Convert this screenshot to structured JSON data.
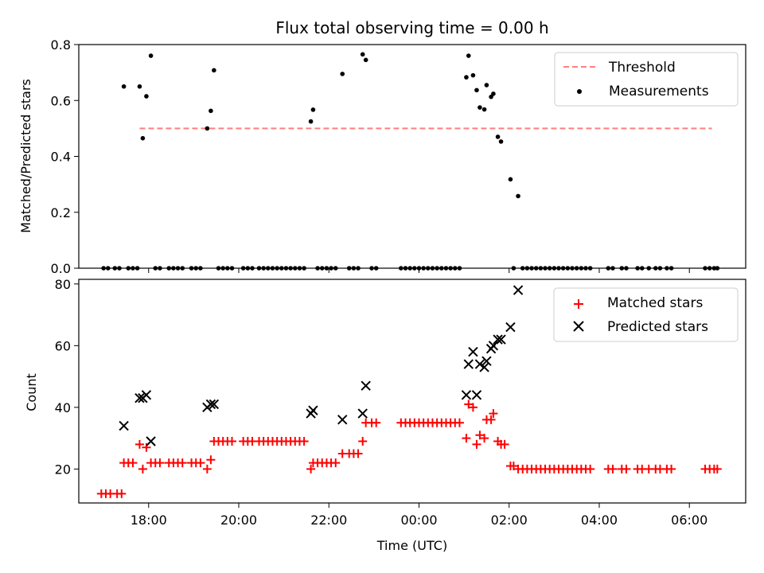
{
  "chart_data": [
    {
      "type": "scatter",
      "title": "Flux total observing time = 0.00 h",
      "xlabel": "",
      "ylabel": "Matched/Predicted stars",
      "xlim": [
        16.45,
        31.25
      ],
      "ylim": [
        0.0,
        0.8
      ],
      "yticks": [
        "0.0",
        "0.2",
        "0.4",
        "0.6",
        "0.8"
      ],
      "xticks_hours": [
        18,
        20,
        22,
        24,
        26,
        28,
        30
      ],
      "grid": false,
      "legend_position": "top-right",
      "threshold": {
        "name": "Threshold",
        "y": 0.5,
        "x_start": 17.8,
        "x_end": 30.5,
        "color": "#ff7f7f",
        "style": "dashed"
      },
      "series": [
        {
          "name": "Measurements",
          "color": "#000000",
          "marker": "dot",
          "points": [
            [
              17.45,
              0.65
            ],
            [
              17.8,
              0.65
            ],
            [
              17.87,
              0.465
            ],
            [
              17.95,
              0.615
            ],
            [
              18.05,
              0.76
            ],
            [
              19.3,
              0.5
            ],
            [
              19.38,
              0.563
            ],
            [
              19.45,
              0.708
            ],
            [
              21.6,
              0.525
            ],
            [
              21.65,
              0.567
            ],
            [
              22.3,
              0.695
            ],
            [
              22.75,
              0.765
            ],
            [
              22.82,
              0.745
            ],
            [
              25.05,
              0.683
            ],
            [
              25.1,
              0.76
            ],
            [
              25.2,
              0.69
            ],
            [
              25.28,
              0.637
            ],
            [
              25.35,
              0.575
            ],
            [
              25.45,
              0.568
            ],
            [
              25.5,
              0.655
            ],
            [
              25.6,
              0.613
            ],
            [
              25.65,
              0.624
            ],
            [
              25.75,
              0.47
            ],
            [
              25.82,
              0.453
            ],
            [
              26.03,
              0.318
            ],
            [
              26.2,
              0.258
            ],
            [
              17.0,
              0.0
            ],
            [
              17.1,
              0.0
            ],
            [
              17.25,
              0.0
            ],
            [
              17.35,
              0.0
            ],
            [
              17.55,
              0.0
            ],
            [
              17.65,
              0.0
            ],
            [
              17.75,
              0.0
            ],
            [
              18.15,
              0.0
            ],
            [
              18.25,
              0.0
            ],
            [
              18.45,
              0.0
            ],
            [
              18.55,
              0.0
            ],
            [
              18.65,
              0.0
            ],
            [
              18.75,
              0.0
            ],
            [
              18.95,
              0.0
            ],
            [
              19.05,
              0.0
            ],
            [
              19.15,
              0.0
            ],
            [
              19.55,
              0.0
            ],
            [
              19.65,
              0.0
            ],
            [
              19.75,
              0.0
            ],
            [
              19.85,
              0.0
            ],
            [
              20.1,
              0.0
            ],
            [
              20.2,
              0.0
            ],
            [
              20.3,
              0.0
            ],
            [
              20.45,
              0.0
            ],
            [
              20.55,
              0.0
            ],
            [
              20.65,
              0.0
            ],
            [
              20.75,
              0.0
            ],
            [
              20.85,
              0.0
            ],
            [
              20.95,
              0.0
            ],
            [
              21.05,
              0.0
            ],
            [
              21.15,
              0.0
            ],
            [
              21.25,
              0.0
            ],
            [
              21.35,
              0.0
            ],
            [
              21.45,
              0.0
            ],
            [
              21.75,
              0.0
            ],
            [
              21.85,
              0.0
            ],
            [
              21.95,
              0.0
            ],
            [
              22.05,
              0.0
            ],
            [
              22.15,
              0.0
            ],
            [
              22.45,
              0.0
            ],
            [
              22.55,
              0.0
            ],
            [
              22.65,
              0.0
            ],
            [
              22.95,
              0.0
            ],
            [
              23.05,
              0.0
            ],
            [
              23.6,
              0.0
            ],
            [
              23.7,
              0.0
            ],
            [
              23.8,
              0.0
            ],
            [
              23.9,
              0.0
            ],
            [
              24.0,
              0.0
            ],
            [
              24.1,
              0.0
            ],
            [
              24.2,
              0.0
            ],
            [
              24.3,
              0.0
            ],
            [
              24.4,
              0.0
            ],
            [
              24.5,
              0.0
            ],
            [
              24.6,
              0.0
            ],
            [
              24.7,
              0.0
            ],
            [
              24.8,
              0.0
            ],
            [
              24.9,
              0.0
            ],
            [
              26.1,
              0.0
            ],
            [
              26.3,
              0.0
            ],
            [
              26.4,
              0.0
            ],
            [
              26.5,
              0.0
            ],
            [
              26.6,
              0.0
            ],
            [
              26.7,
              0.0
            ],
            [
              26.8,
              0.0
            ],
            [
              26.9,
              0.0
            ],
            [
              27.0,
              0.0
            ],
            [
              27.1,
              0.0
            ],
            [
              27.2,
              0.0
            ],
            [
              27.3,
              0.0
            ],
            [
              27.4,
              0.0
            ],
            [
              27.5,
              0.0
            ],
            [
              27.6,
              0.0
            ],
            [
              27.7,
              0.0
            ],
            [
              27.8,
              0.0
            ],
            [
              28.2,
              0.0
            ],
            [
              28.3,
              0.0
            ],
            [
              28.5,
              0.0
            ],
            [
              28.6,
              0.0
            ],
            [
              28.85,
              0.0
            ],
            [
              28.95,
              0.0
            ],
            [
              29.1,
              0.0
            ],
            [
              29.25,
              0.0
            ],
            [
              29.35,
              0.0
            ],
            [
              29.5,
              0.0
            ],
            [
              29.6,
              0.0
            ],
            [
              30.35,
              0.0
            ],
            [
              30.45,
              0.0
            ],
            [
              30.55,
              0.0
            ],
            [
              30.62,
              0.0
            ]
          ]
        }
      ]
    },
    {
      "type": "scatter",
      "title": "",
      "xlabel": "Time (UTC)",
      "ylabel": "Count",
      "xlim": [
        16.45,
        31.25
      ],
      "ylim": [
        9,
        81.5
      ],
      "yticks": [
        "20",
        "40",
        "60",
        "80"
      ],
      "xticks": [
        "18:00",
        "20:00",
        "22:00",
        "00:00",
        "02:00",
        "04:00",
        "06:00"
      ],
      "xticks_hours": [
        18,
        20,
        22,
        24,
        26,
        28,
        30
      ],
      "grid": false,
      "legend_position": "top-right",
      "series": [
        {
          "name": "Matched stars",
          "color": "#ff0000",
          "marker": "plus",
          "points": [
            [
              16.95,
              12
            ],
            [
              17.05,
              12
            ],
            [
              17.15,
              12
            ],
            [
              17.3,
              12
            ],
            [
              17.4,
              12
            ],
            [
              17.45,
              22
            ],
            [
              17.55,
              22
            ],
            [
              17.65,
              22
            ],
            [
              17.8,
              28
            ],
            [
              17.87,
              20
            ],
            [
              17.95,
              27
            ],
            [
              18.05,
              22
            ],
            [
              18.15,
              22
            ],
            [
              18.25,
              22
            ],
            [
              18.45,
              22
            ],
            [
              18.55,
              22
            ],
            [
              18.65,
              22
            ],
            [
              18.75,
              22
            ],
            [
              18.95,
              22
            ],
            [
              19.05,
              22
            ],
            [
              19.15,
              22
            ],
            [
              19.3,
              20
            ],
            [
              19.38,
              23
            ],
            [
              19.45,
              29
            ],
            [
              19.55,
              29
            ],
            [
              19.65,
              29
            ],
            [
              19.75,
              29
            ],
            [
              19.85,
              29
            ],
            [
              20.1,
              29
            ],
            [
              20.2,
              29
            ],
            [
              20.3,
              29
            ],
            [
              20.45,
              29
            ],
            [
              20.55,
              29
            ],
            [
              20.65,
              29
            ],
            [
              20.75,
              29
            ],
            [
              20.85,
              29
            ],
            [
              20.95,
              29
            ],
            [
              21.05,
              29
            ],
            [
              21.15,
              29
            ],
            [
              21.25,
              29
            ],
            [
              21.35,
              29
            ],
            [
              21.45,
              29
            ],
            [
              21.6,
              20
            ],
            [
              21.65,
              22
            ],
            [
              21.75,
              22
            ],
            [
              21.85,
              22
            ],
            [
              21.95,
              22
            ],
            [
              22.05,
              22
            ],
            [
              22.15,
              22
            ],
            [
              22.3,
              25
            ],
            [
              22.45,
              25
            ],
            [
              22.55,
              25
            ],
            [
              22.65,
              25
            ],
            [
              22.75,
              29
            ],
            [
              22.82,
              35
            ],
            [
              22.95,
              35
            ],
            [
              23.05,
              35
            ],
            [
              23.6,
              35
            ],
            [
              23.7,
              35
            ],
            [
              23.8,
              35
            ],
            [
              23.9,
              35
            ],
            [
              24.0,
              35
            ],
            [
              24.1,
              35
            ],
            [
              24.2,
              35
            ],
            [
              24.3,
              35
            ],
            [
              24.4,
              35
            ],
            [
              24.5,
              35
            ],
            [
              24.6,
              35
            ],
            [
              24.7,
              35
            ],
            [
              24.8,
              35
            ],
            [
              24.9,
              35
            ],
            [
              25.05,
              30
            ],
            [
              25.1,
              41
            ],
            [
              25.2,
              40
            ],
            [
              25.28,
              28
            ],
            [
              25.35,
              31
            ],
            [
              25.45,
              30
            ],
            [
              25.5,
              36
            ],
            [
              25.6,
              36
            ],
            [
              25.65,
              38
            ],
            [
              25.75,
              29
            ],
            [
              25.82,
              28
            ],
            [
              25.9,
              28
            ],
            [
              26.03,
              21
            ],
            [
              26.1,
              21
            ],
            [
              26.2,
              20
            ],
            [
              26.3,
              20
            ],
            [
              26.4,
              20
            ],
            [
              26.5,
              20
            ],
            [
              26.6,
              20
            ],
            [
              26.7,
              20
            ],
            [
              26.8,
              20
            ],
            [
              26.9,
              20
            ],
            [
              27.0,
              20
            ],
            [
              27.1,
              20
            ],
            [
              27.2,
              20
            ],
            [
              27.3,
              20
            ],
            [
              27.4,
              20
            ],
            [
              27.5,
              20
            ],
            [
              27.6,
              20
            ],
            [
              27.7,
              20
            ],
            [
              27.8,
              20
            ],
            [
              28.2,
              20
            ],
            [
              28.3,
              20
            ],
            [
              28.5,
              20
            ],
            [
              28.6,
              20
            ],
            [
              28.85,
              20
            ],
            [
              28.95,
              20
            ],
            [
              29.1,
              20
            ],
            [
              29.25,
              20
            ],
            [
              29.35,
              20
            ],
            [
              29.5,
              20
            ],
            [
              29.6,
              20
            ],
            [
              30.35,
              20
            ],
            [
              30.45,
              20
            ],
            [
              30.55,
              20
            ],
            [
              30.62,
              20
            ]
          ]
        },
        {
          "name": "Predicted stars",
          "color": "#000000",
          "marker": "x",
          "points": [
            [
              17.45,
              34
            ],
            [
              17.8,
              43
            ],
            [
              17.87,
              43
            ],
            [
              17.95,
              44
            ],
            [
              18.05,
              29
            ],
            [
              19.3,
              40
            ],
            [
              19.38,
              41
            ],
            [
              19.45,
              41
            ],
            [
              21.6,
              38
            ],
            [
              21.65,
              39
            ],
            [
              22.3,
              36
            ],
            [
              22.75,
              38
            ],
            [
              22.82,
              47
            ],
            [
              25.05,
              44
            ],
            [
              25.1,
              54
            ],
            [
              25.2,
              58
            ],
            [
              25.28,
              44
            ],
            [
              25.35,
              54
            ],
            [
              25.45,
              53
            ],
            [
              25.5,
              55
            ],
            [
              25.6,
              59
            ],
            [
              25.65,
              60
            ],
            [
              25.75,
              62
            ],
            [
              25.82,
              62
            ],
            [
              26.03,
              66
            ],
            [
              26.2,
              78
            ]
          ]
        }
      ]
    }
  ]
}
